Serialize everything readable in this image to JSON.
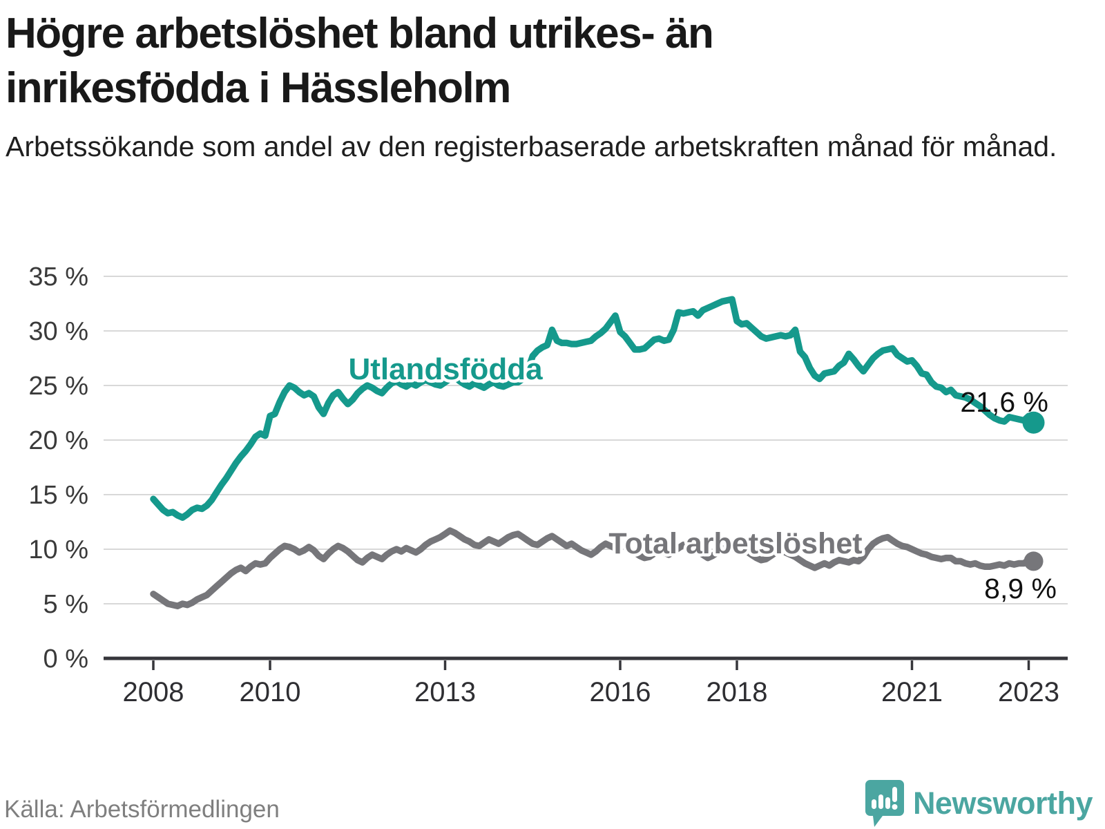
{
  "header": {
    "title_lines": [
      "Högre arbetslöshet bland utrikes- än",
      "inrikesfödda i Hässleholm"
    ],
    "subtitle": "Arbetssökande som andel av den registerbaserade arbetskraften månad för månad."
  },
  "footer": {
    "source": "Källa: Arbetsförmedlingen",
    "brand": "Newsworthy"
  },
  "colors": {
    "series_foreign": "#15998c",
    "series_total": "#76767a",
    "gridline": "#d8d8d8",
    "axis": "#36363b",
    "tick_label": "#3a3a3a",
    "end_label": "#111111",
    "logo": "#4ba6a1"
  },
  "chart_data": {
    "type": "line",
    "title": "Arbetssökande som andel av den registerbaserade arbetskraften månad för månad",
    "x_start_year": 2008,
    "x_months_per_point": 1,
    "x_tick_years": [
      2008,
      2010,
      2013,
      2016,
      2018,
      2021,
      2023
    ],
    "y_ticks": [
      0,
      5,
      10,
      15,
      20,
      25,
      30,
      35
    ],
    "y_tick_suffix": " %",
    "ylim": [
      0,
      35
    ],
    "grid": true,
    "legend_position": "inline-labels",
    "series": [
      {
        "name": "Utlandsfödda",
        "end_label": "21,6 %",
        "end_value": 21.6,
        "values": [
          14.6,
          14.1,
          13.6,
          13.3,
          13.4,
          13.1,
          12.9,
          13.2,
          13.6,
          13.8,
          13.7,
          14.0,
          14.5,
          15.2,
          15.9,
          16.5,
          17.2,
          17.9,
          18.5,
          19.0,
          19.6,
          20.3,
          20.6,
          20.4,
          22.2,
          22.4,
          23.5,
          24.4,
          25.0,
          24.8,
          24.4,
          24.1,
          24.3,
          24.0,
          23.0,
          22.4,
          23.4,
          24.1,
          24.4,
          23.8,
          23.3,
          23.7,
          24.3,
          24.7,
          25.0,
          24.8,
          24.5,
          24.3,
          24.8,
          25.2,
          25.4,
          25.1,
          24.9,
          25.2,
          25.0,
          25.3,
          25.5,
          25.3,
          25.1,
          25.0,
          25.3,
          25.6,
          25.8,
          25.4,
          25.1,
          24.9,
          25.2,
          25.0,
          24.8,
          25.1,
          25.3,
          25.0,
          24.9,
          25.1,
          25.3,
          25.3,
          25.6,
          26.4,
          27.7,
          28.2,
          28.5,
          28.7,
          30.1,
          29.1,
          28.9,
          28.9,
          28.8,
          28.8,
          28.9,
          29.0,
          29.1,
          29.5,
          29.8,
          30.2,
          30.8,
          31.4,
          29.9,
          29.5,
          28.9,
          28.3,
          28.3,
          28.4,
          28.8,
          29.2,
          29.3,
          29.1,
          29.2,
          30.1,
          31.7,
          31.6,
          31.7,
          31.8,
          31.4,
          31.9,
          32.1,
          32.3,
          32.5,
          32.7,
          32.8,
          32.9,
          30.9,
          30.6,
          30.7,
          30.3,
          29.9,
          29.5,
          29.3,
          29.4,
          29.5,
          29.6,
          29.5,
          29.6,
          30.1,
          28.1,
          27.6,
          26.6,
          25.9,
          25.6,
          26.1,
          26.2,
          26.3,
          26.8,
          27.1,
          27.9,
          27.4,
          26.8,
          26.3,
          26.9,
          27.5,
          27.9,
          28.2,
          28.3,
          28.4,
          27.8,
          27.5,
          27.2,
          27.3,
          26.8,
          26.1,
          26.0,
          25.3,
          24.9,
          24.8,
          24.4,
          24.6,
          24.1,
          24.0,
          23.9,
          23.7,
          23.4,
          23.1,
          22.7,
          22.3,
          22.0,
          21.8,
          21.7,
          22.1,
          22.0,
          21.9,
          21.8,
          22.2,
          21.6
        ]
      },
      {
        "name": "Total arbetslöshet",
        "end_label": "8,9 %",
        "end_value": 8.9,
        "values": [
          5.9,
          5.6,
          5.3,
          5.0,
          4.9,
          4.8,
          5.0,
          4.9,
          5.1,
          5.4,
          5.6,
          5.8,
          6.2,
          6.6,
          7.0,
          7.4,
          7.8,
          8.1,
          8.3,
          8.0,
          8.4,
          8.7,
          8.6,
          8.7,
          9.2,
          9.6,
          10.0,
          10.3,
          10.2,
          10.0,
          9.7,
          9.9,
          10.2,
          9.9,
          9.4,
          9.1,
          9.6,
          10.0,
          10.3,
          10.1,
          9.8,
          9.4,
          9.0,
          8.8,
          9.2,
          9.5,
          9.3,
          9.1,
          9.5,
          9.8,
          10.0,
          9.8,
          10.1,
          9.9,
          9.7,
          10.0,
          10.4,
          10.7,
          10.9,
          11.1,
          11.4,
          11.7,
          11.5,
          11.2,
          10.9,
          10.7,
          10.4,
          10.3,
          10.6,
          10.9,
          10.7,
          10.5,
          10.8,
          11.1,
          11.3,
          11.4,
          11.1,
          10.8,
          10.5,
          10.4,
          10.7,
          11.0,
          11.2,
          10.9,
          10.6,
          10.3,
          10.5,
          10.2,
          9.9,
          9.7,
          9.5,
          9.8,
          10.2,
          10.5,
          10.3,
          10.1,
          10.4,
          10.2,
          9.9,
          9.7,
          9.4,
          9.2,
          9.3,
          9.6,
          9.9,
          9.7,
          9.5,
          9.8,
          10.1,
          10.4,
          10.2,
          10.0,
          9.8,
          9.5,
          9.2,
          9.4,
          9.7,
          10.0,
          10.2,
          10.4,
          10.3,
          10.1,
          9.8,
          9.5,
          9.2,
          9.0,
          9.1,
          9.4,
          9.7,
          9.9,
          9.7,
          9.5,
          9.3,
          9.0,
          8.7,
          8.5,
          8.3,
          8.5,
          8.7,
          8.5,
          8.8,
          9.0,
          8.9,
          8.8,
          9.0,
          8.9,
          9.3,
          10.0,
          10.5,
          10.8,
          11.0,
          11.1,
          10.8,
          10.5,
          10.3,
          10.2,
          10.0,
          9.8,
          9.6,
          9.5,
          9.3,
          9.2,
          9.1,
          9.2,
          9.2,
          8.9,
          8.9,
          8.7,
          8.6,
          8.7,
          8.5,
          8.4,
          8.4,
          8.5,
          8.6,
          8.5,
          8.7,
          8.6,
          8.7,
          8.7,
          9.0,
          8.9
        ]
      }
    ]
  }
}
